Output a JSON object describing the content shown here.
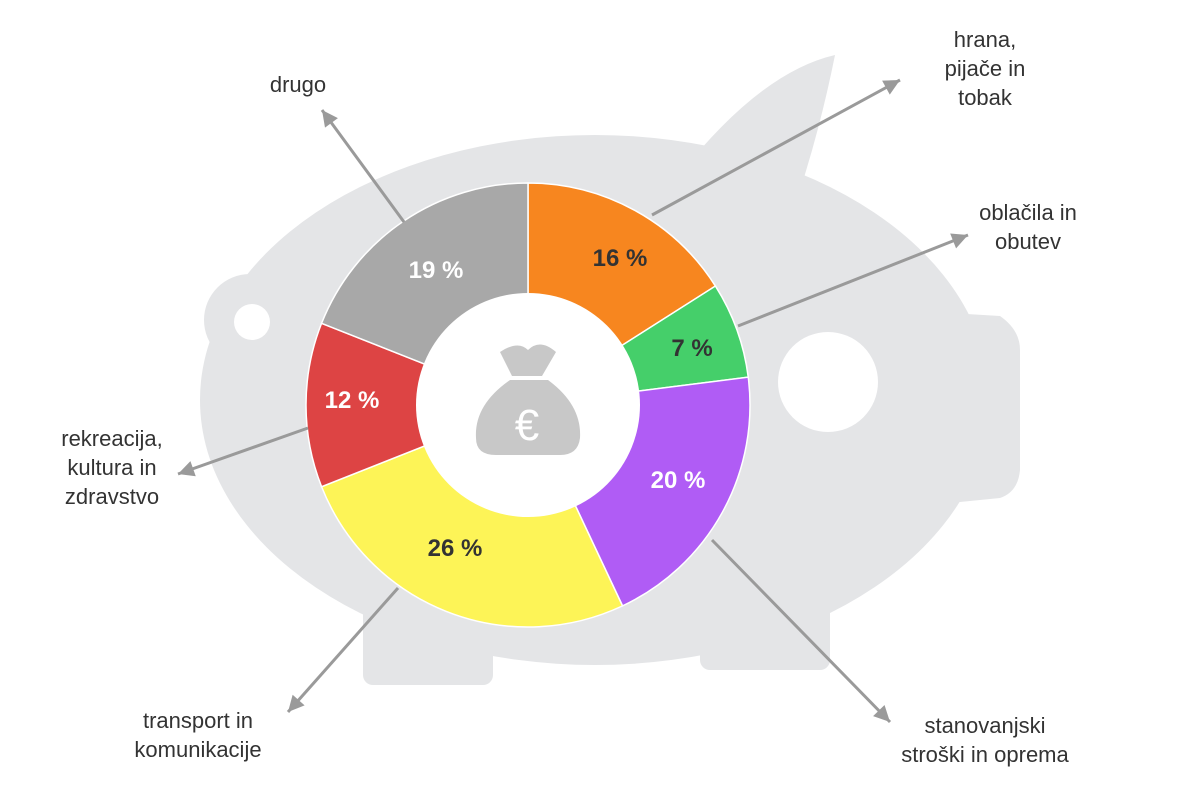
{
  "colors": {
    "piggy": "#e4e5e7",
    "center_hole": "#ffffff",
    "money_bag": "#c8c8c8",
    "leader": "#9a9a9a",
    "label_text": "#333333"
  },
  "icons": {
    "background": "piggy-bank",
    "center": "money-bag-euro-icon"
  },
  "chart_data": {
    "type": "pie",
    "variant": "donut",
    "title": "",
    "slices": [
      {
        "key": "food",
        "label": "hrana,\npijače in\ntobak",
        "value": 16,
        "value_label": "16 %",
        "color": "#f7861f",
        "text_color": "#333333"
      },
      {
        "key": "clothing",
        "label": "oblačila in\nobutev",
        "value": 7,
        "value_label": "7 %",
        "color": "#45cf6a",
        "text_color": "#333333"
      },
      {
        "key": "housing",
        "label": "stanovanjski\nstroški in oprema",
        "value": 20,
        "value_label": "20 %",
        "color": "#b05cf5",
        "text_color": "#ffffff"
      },
      {
        "key": "transport",
        "label": "transport in\nkomunikacije",
        "value": 26,
        "value_label": "26 %",
        "color": "#fdf457",
        "text_color": "#333333"
      },
      {
        "key": "recreation",
        "label": "rekreacija,\nkultura in\nzdravstvo",
        "value": 12,
        "value_label": "12 %",
        "color": "#dd4444",
        "text_color": "#ffffff"
      },
      {
        "key": "other",
        "label": "drugo",
        "value": 19,
        "value_label": "19 %",
        "color": "#a8a8a8",
        "text_color": "#ffffff"
      }
    ],
    "start": "top",
    "direction": "clockwise",
    "legend": "none"
  }
}
